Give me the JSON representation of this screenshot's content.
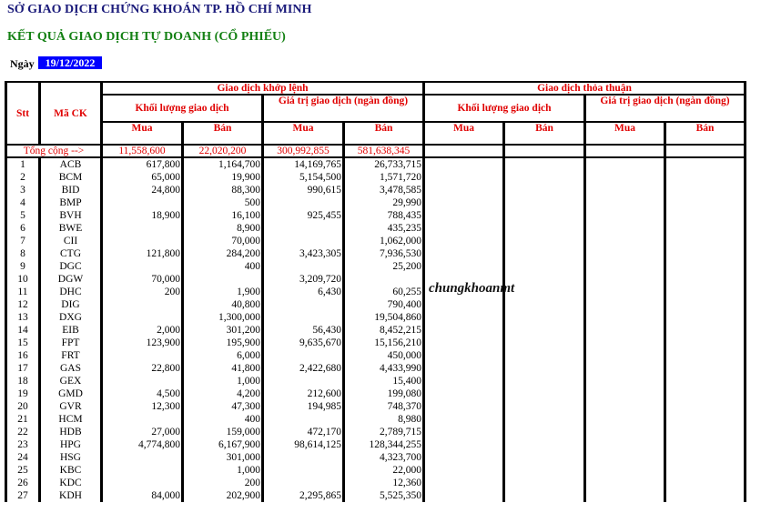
{
  "title": "SỞ GIAO DỊCH CHỨNG KHOÁN TP. HỒ CHÍ MINH",
  "subtitle": "KẾT QUẢ GIAO DỊCH TỰ DOANH (CỔ PHIẾU)",
  "date_label": "Ngày",
  "date_value": "19/12/2022",
  "watermark": "chungkhoanmt",
  "headers": {
    "stt": "Stt",
    "ma_ck": "Mã CK",
    "khop_lenh": "Giao dịch khớp lệnh",
    "thoa_thuan": "Giao dịch thỏa thuận",
    "khoi_luong": "Khối lượng giao dịch",
    "gia_tri": "Giá trị giao dịch (ngàn đồng)",
    "mua": "Mua",
    "ban": "Bán"
  },
  "total": {
    "label": "Tổng cộng  -->",
    "kl_mua": "11,558,600",
    "kl_ban": "22,020,200",
    "gt_mua": "300,992,855",
    "gt_ban": "581,638,345"
  },
  "rows": [
    [
      "1",
      "ACB",
      "617,800",
      "1,164,700",
      "14,169,765",
      "26,733,715"
    ],
    [
      "2",
      "BCM",
      "65,000",
      "19,900",
      "5,154,500",
      "1,571,720"
    ],
    [
      "3",
      "BID",
      "24,800",
      "88,300",
      "990,615",
      "3,478,585"
    ],
    [
      "4",
      "BMP",
      "",
      "500",
      "",
      "29,990"
    ],
    [
      "5",
      "BVH",
      "18,900",
      "16,100",
      "925,455",
      "788,435"
    ],
    [
      "6",
      "BWE",
      "",
      "8,900",
      "",
      "435,235"
    ],
    [
      "7",
      "CII",
      "",
      "70,000",
      "",
      "1,062,000"
    ],
    [
      "8",
      "CTG",
      "121,800",
      "284,200",
      "3,423,305",
      "7,936,530"
    ],
    [
      "9",
      "DGC",
      "",
      "400",
      "",
      "25,200"
    ],
    [
      "10",
      "DGW",
      "70,000",
      "",
      "3,209,720",
      ""
    ],
    [
      "11",
      "DHC",
      "200",
      "1,900",
      "6,430",
      "60,255"
    ],
    [
      "12",
      "DIG",
      "",
      "40,800",
      "",
      "790,400"
    ],
    [
      "13",
      "DXG",
      "",
      "1,300,000",
      "",
      "19,504,860"
    ],
    [
      "14",
      "EIB",
      "2,000",
      "301,200",
      "56,430",
      "8,452,215"
    ],
    [
      "15",
      "FPT",
      "123,900",
      "195,900",
      "9,635,670",
      "15,156,210"
    ],
    [
      "16",
      "FRT",
      "",
      "6,000",
      "",
      "450,000"
    ],
    [
      "17",
      "GAS",
      "22,800",
      "41,800",
      "2,422,680",
      "4,433,990"
    ],
    [
      "18",
      "GEX",
      "",
      "1,000",
      "",
      "15,400"
    ],
    [
      "19",
      "GMD",
      "4,500",
      "4,200",
      "212,600",
      "199,080"
    ],
    [
      "20",
      "GVR",
      "12,300",
      "47,300",
      "194,985",
      "748,370"
    ],
    [
      "21",
      "HCM",
      "",
      "400",
      "",
      "8,980"
    ],
    [
      "22",
      "HDB",
      "27,000",
      "159,000",
      "472,170",
      "2,789,715"
    ],
    [
      "23",
      "HPG",
      "4,774,800",
      "6,167,900",
      "98,614,125",
      "128,344,255"
    ],
    [
      "24",
      "HSG",
      "",
      "301,000",
      "",
      "4,323,700"
    ],
    [
      "25",
      "KBC",
      "",
      "1,000",
      "",
      "22,000"
    ],
    [
      "26",
      "KDC",
      "",
      "200",
      "",
      "12,360"
    ],
    [
      "27",
      "KDH",
      "84,000",
      "202,900",
      "2,295,865",
      "5,525,350"
    ]
  ]
}
